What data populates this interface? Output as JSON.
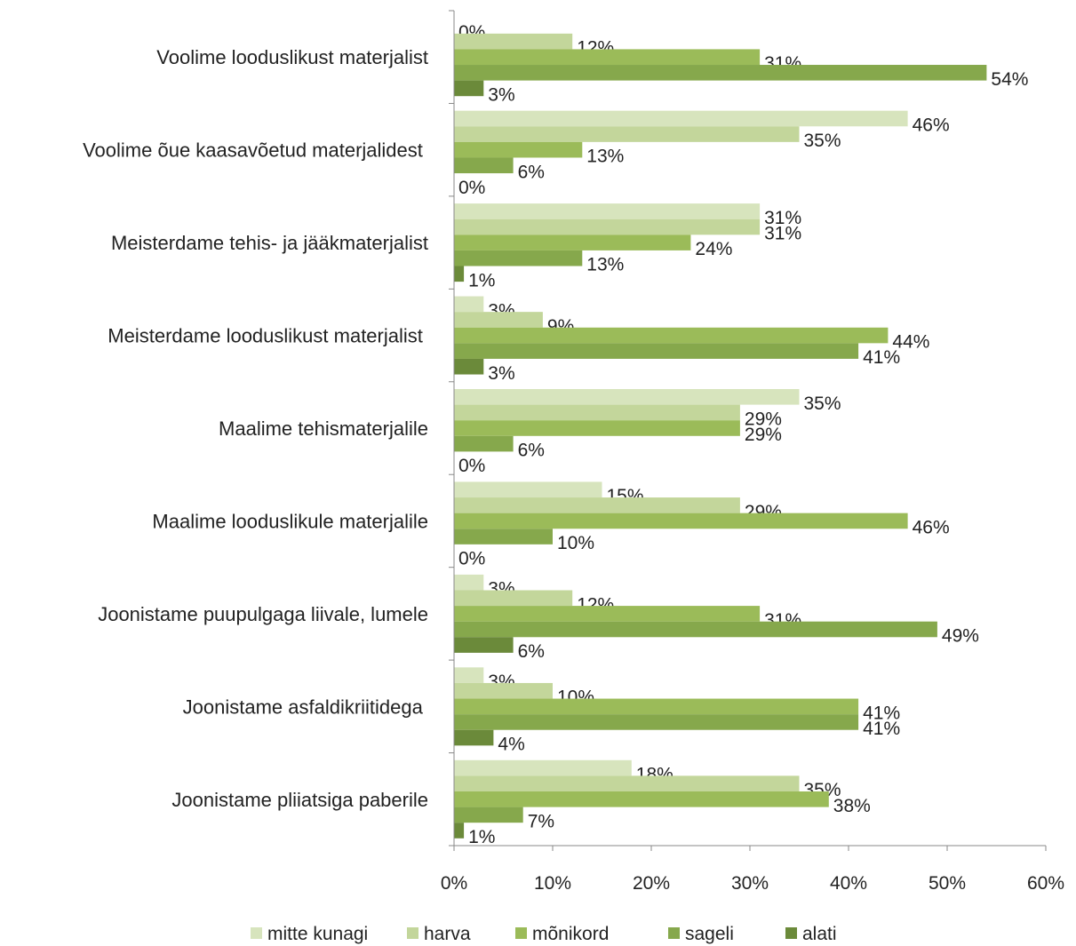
{
  "chart_data": {
    "type": "bar",
    "orientation": "horizontal",
    "categories": [
      "Voolime looduslikust materjalist",
      "Voolime õue kaasavõetud materjalidest ",
      "Meisterdame tehis- ja jääkmaterjalist",
      "Meisterdame looduslikust materjalist ",
      "Maalime tehismaterjalile",
      "Maalime looduslikule materjalile",
      "Joonistame puupulgaga liivale, lumele",
      "Joonistame asfaldikriitidega ",
      "Joonistame pliiatsiga paberile"
    ],
    "series": [
      {
        "name": "mitte kunagi",
        "color": "#d7e4bd",
        "values": [
          0,
          46,
          31,
          3,
          35,
          15,
          3,
          3,
          18
        ],
        "value_labels": [
          "0%",
          "46%",
          "31%",
          "3%",
          "35%",
          "15%",
          "3%",
          "3%",
          "18%"
        ]
      },
      {
        "name": "harva",
        "color": "#c3d69b",
        "values": [
          12,
          35,
          31,
          9,
          29,
          29,
          12,
          10,
          35
        ],
        "value_labels": [
          "12%",
          "35%",
          "31%",
          "9%",
          "29%",
          "29%",
          "12%",
          "10%",
          "35%"
        ]
      },
      {
        "name": "mõnikord",
        "color": "#9bbb59",
        "values": [
          31,
          13,
          24,
          44,
          29,
          46,
          31,
          41,
          38
        ],
        "value_labels": [
          "31%",
          "13%",
          "24%",
          "44%",
          "29%",
          "46%",
          "31%",
          "41%",
          "38%"
        ]
      },
      {
        "name": "sageli",
        "color": "#86a84c",
        "values": [
          54,
          6,
          13,
          41,
          6,
          10,
          49,
          41,
          7
        ],
        "value_labels": [
          "54%",
          "6%",
          "13%",
          "41%",
          "6%",
          "10%",
          "49%",
          "41%",
          "7%"
        ]
      },
      {
        "name": "alati",
        "color": "#6b8a3a",
        "values": [
          3,
          0,
          1,
          3,
          0,
          0,
          6,
          4,
          1
        ],
        "value_labels": [
          "3%",
          "0%",
          "1%",
          "3%",
          "0%",
          "0%",
          "6%",
          "4%",
          "1%"
        ]
      }
    ],
    "xlim": [
      0,
      60
    ],
    "xticks": [
      {
        "value": 0,
        "label": "0%"
      },
      {
        "value": 10,
        "label": "10%"
      },
      {
        "value": 20,
        "label": "20%"
      },
      {
        "value": 30,
        "label": "30%"
      },
      {
        "value": 40,
        "label": "40%"
      },
      {
        "value": 50,
        "label": "50%"
      },
      {
        "value": 60,
        "label": "60%"
      }
    ],
    "legend": "bottom"
  }
}
